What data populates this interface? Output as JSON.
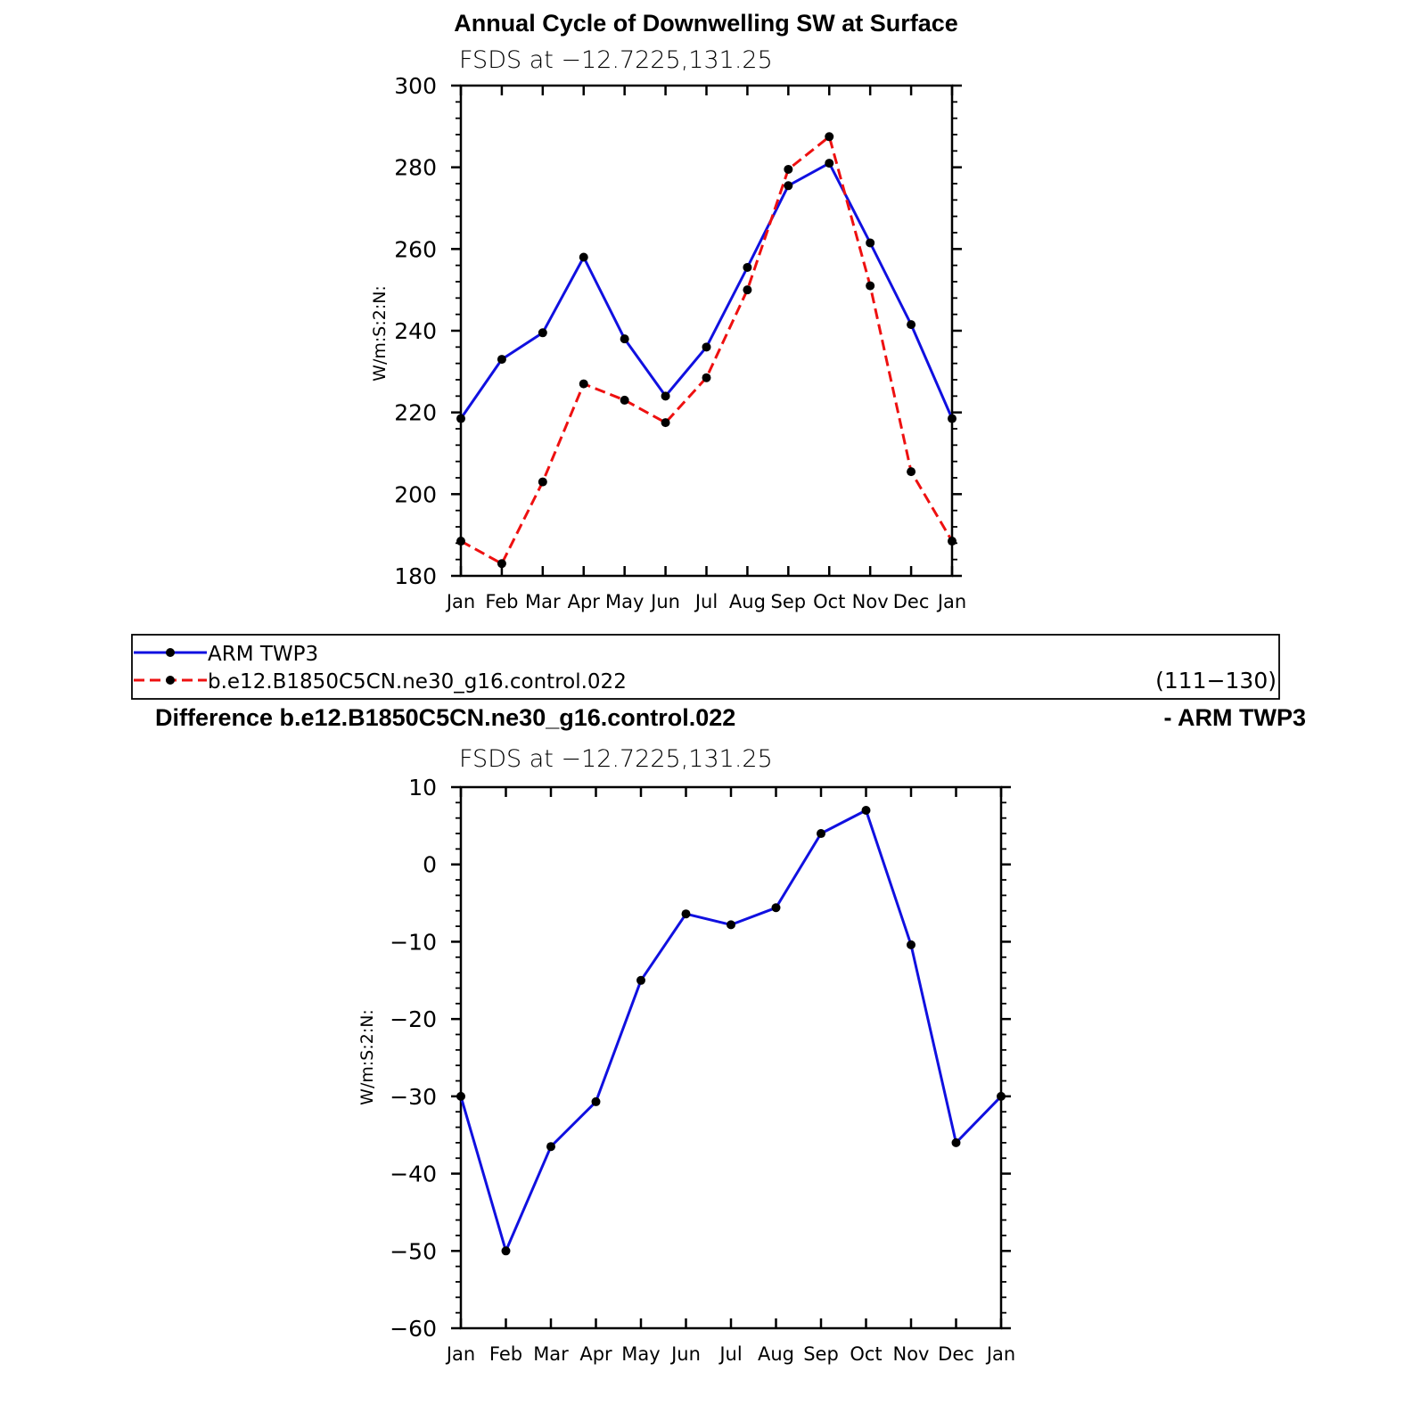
{
  "figure": {
    "main_title": "Annual Cycle of Downwelling SW at Surface",
    "legend": {
      "entries": [
        {
          "label": "ARM TWP3",
          "color": "#1010e0",
          "dash": "solid"
        },
        {
          "label": "b.e12.B1850C5CN.ne30_g16.control.022",
          "color": "#ee1010",
          "dash": "dashed"
        }
      ],
      "years": "(111−130)"
    },
    "diff_title_left": "Difference b.e12.B1850C5CN.ne30_g16.control.022",
    "diff_title_right": "- ARM TWP3"
  },
  "chart_data": [
    {
      "type": "line",
      "subtitle": "FSDS at −12.7225,131.25",
      "ylabel": "W/m:S:2:N:",
      "xlabel": "",
      "categories": [
        "Jan",
        "Feb",
        "Mar",
        "Apr",
        "May",
        "Jun",
        "Jul",
        "Aug",
        "Sep",
        "Oct",
        "Nov",
        "Dec",
        "Jan"
      ],
      "ylim": [
        180,
        300
      ],
      "yticks": [
        180,
        200,
        220,
        240,
        260,
        280,
        300
      ],
      "grid": false,
      "legend": "below",
      "series": [
        {
          "name": "ARM TWP3",
          "color": "#1010e0",
          "dash": "solid",
          "values": [
            218.5,
            233,
            239.5,
            258,
            238,
            224,
            236,
            255.5,
            275.5,
            281,
            261.5,
            241.5,
            218.5
          ]
        },
        {
          "name": "b.e12.B1850C5CN.ne30_g16.control.022",
          "color": "#ee1010",
          "dash": "dashed",
          "values": [
            188.5,
            183,
            203,
            227,
            223,
            217.5,
            228.5,
            250,
            279.5,
            287.5,
            251,
            205.5,
            188.5
          ]
        }
      ]
    },
    {
      "type": "line",
      "subtitle": "FSDS at −12.7225,131.25",
      "ylabel": "W/m:S:2:N:",
      "xlabel": "",
      "categories": [
        "Jan",
        "Feb",
        "Mar",
        "Apr",
        "May",
        "Jun",
        "Jul",
        "Aug",
        "Sep",
        "Oct",
        "Nov",
        "Dec",
        "Jan"
      ],
      "ylim": [
        -60,
        10
      ],
      "yticks": [
        -60,
        -50,
        -40,
        -30,
        -20,
        -10,
        0,
        10
      ],
      "grid": false,
      "series": [
        {
          "name": "",
          "color": "#1010e0",
          "dash": "solid",
          "values": [
            -30,
            -50,
            -36.5,
            -30.7,
            -15,
            -6.4,
            -7.8,
            -5.6,
            4,
            7,
            -10.4,
            -36,
            -30
          ]
        }
      ]
    }
  ]
}
